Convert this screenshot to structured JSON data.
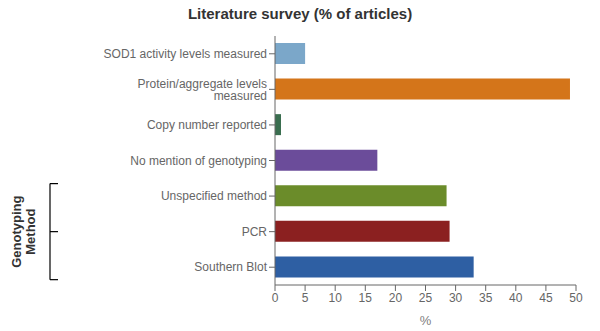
{
  "chart_data": {
    "type": "bar",
    "orientation": "horizontal",
    "title": "Literature survey (% of articles)",
    "xlabel": "%",
    "ylabel": "Genotyping\nMethod",
    "categories": [
      "Southern Blot",
      "PCR",
      "Unspecified method",
      "No mention of genotyping",
      "Copy number reported",
      "Protein/aggregate levels measured",
      "SOD1 activity levels measured"
    ],
    "values": [
      33,
      29,
      28.5,
      17,
      1,
      49,
      5
    ],
    "colors": [
      "#2E5FA3",
      "#8B2020",
      "#6B8C2A",
      "#6B4C9A",
      "#3A6E4F",
      "#D4751A",
      "#7BA7C9"
    ],
    "xlim": [
      0,
      50
    ],
    "xticks": [
      0,
      5,
      10,
      15,
      20,
      25,
      30,
      35,
      40,
      45,
      50
    ],
    "grid": false
  }
}
